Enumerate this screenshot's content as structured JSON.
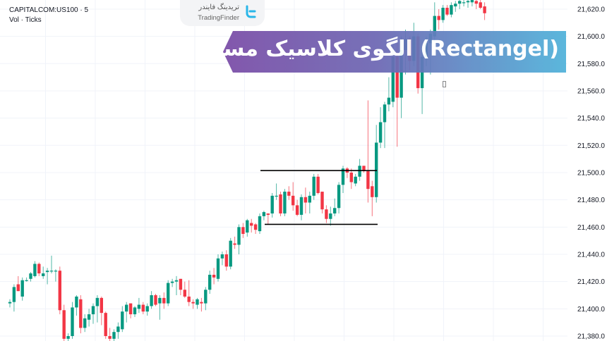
{
  "symbol": {
    "line1": "CAPITALCOM:US100 · 5",
    "line2": "Vol · Ticks"
  },
  "logo": {
    "fa": "تریدینگ فایندر",
    "en": "TradingFinder"
  },
  "banner": {
    "title": "الگوی کلاسیک مستطیل (Rectangel)"
  },
  "colors": {
    "up": "#089981",
    "down": "#f23645",
    "grid": "#f0f3fa",
    "banner_start": "#7a4ba6",
    "banner_end": "#4fb2da"
  },
  "chart_data": {
    "type": "candlestick",
    "ylim": [
      21376,
      21628
    ],
    "y_ticks": [
      "21,380.0",
      "21,400.0",
      "21,420.0",
      "21,440.0",
      "21,460.0",
      "21,480.0",
      "21,500.0",
      "21,520.0",
      "21,540.0",
      "21,560.0",
      "21,580.0",
      "21,600.0",
      "21,620.0"
    ],
    "y_tick_values": [
      21380,
      21400,
      21420,
      21440,
      21460,
      21480,
      21500,
      21520,
      21540,
      21560,
      21580,
      21600,
      21620
    ],
    "rectangle_lines": [
      {
        "price": 21501.5
      },
      {
        "price": 21462
      }
    ],
    "ohlc": [
      [
        21404,
        21407,
        21401,
        21405
      ],
      [
        21405,
        21418,
        21398,
        21416
      ],
      [
        21418,
        21424,
        21413,
        21413
      ],
      [
        21409,
        21423,
        21406,
        21421
      ],
      [
        21421,
        21423,
        21420,
        21421
      ],
      [
        21422,
        21427,
        21420,
        21426
      ],
      [
        21424,
        21435,
        21423,
        21433
      ],
      [
        21433,
        21434,
        21424,
        21426
      ],
      [
        21424,
        21431,
        21422,
        21426
      ],
      [
        21427,
        21430,
        21418,
        21428
      ],
      [
        21428,
        21439,
        21426,
        21428
      ],
      [
        21428,
        21429,
        21420,
        21428
      ],
      [
        21428,
        21431,
        21396,
        21399
      ],
      [
        21399,
        21403,
        21375,
        21378
      ],
      [
        21378,
        21382,
        21370,
        21380
      ],
      [
        21380,
        21405,
        21378,
        21401
      ],
      [
        21401,
        21410,
        21395,
        21409
      ],
      [
        21407,
        21410,
        21382,
        21386
      ],
      [
        21386,
        21396,
        21383,
        21393
      ],
      [
        21392,
        21400,
        21387,
        21396
      ],
      [
        21396,
        21404,
        21389,
        21402
      ],
      [
        21402,
        21410,
        21390,
        21408
      ],
      [
        21408,
        21409,
        21388,
        21397
      ],
      [
        21397,
        21398,
        21378,
        21380
      ],
      [
        21380,
        21386,
        21372,
        21378
      ],
      [
        21378,
        21385,
        21370,
        21383
      ],
      [
        21383,
        21390,
        21378,
        21387
      ],
      [
        21385,
        21402,
        21383,
        21398
      ],
      [
        21398,
        21405,
        21390,
        21403
      ],
      [
        21404,
        21404,
        21393,
        21396
      ],
      [
        21396,
        21402,
        21394,
        21401
      ],
      [
        21400,
        21408,
        21397,
        21403
      ],
      [
        21403,
        21405,
        21396,
        21398
      ],
      [
        21398,
        21404,
        21395,
        21402
      ],
      [
        21402,
        21413,
        21400,
        21410
      ],
      [
        21410,
        21411,
        21402,
        21403
      ],
      [
        21404,
        21410,
        21392,
        21408
      ],
      [
        21408,
        21412,
        21400,
        21404
      ],
      [
        21404,
        21421,
        21402,
        21419
      ],
      [
        21419,
        21422,
        21416,
        21420
      ],
      [
        21420,
        21424,
        21410,
        21421
      ],
      [
        21422,
        21422,
        21410,
        21414
      ],
      [
        21414,
        21420,
        21408,
        21409
      ],
      [
        21409,
        21421,
        21402,
        21405
      ],
      [
        21405,
        21407,
        21400,
        21404
      ],
      [
        21403,
        21408,
        21400,
        21407
      ],
      [
        21405,
        21408,
        21398,
        21404
      ],
      [
        21404,
        21416,
        21399,
        21414
      ],
      [
        21414,
        21428,
        21411,
        21425
      ],
      [
        21425,
        21430,
        21418,
        21423
      ],
      [
        21422,
        21440,
        21420,
        21437
      ],
      [
        21437,
        21442,
        21432,
        21440
      ],
      [
        21440,
        21443,
        21428,
        21431
      ],
      [
        21431,
        21452,
        21429,
        21450
      ],
      [
        21448,
        21453,
        21444,
        21447
      ],
      [
        21447,
        21462,
        21440,
        21460
      ],
      [
        21460,
        21463,
        21452,
        21455
      ],
      [
        21456,
        21466,
        21453,
        21465
      ],
      [
        21463,
        21466,
        21456,
        21461
      ],
      [
        21462,
        21463,
        21455,
        21458
      ],
      [
        21457,
        21470,
        21455,
        21468
      ],
      [
        21468,
        21472,
        21465,
        21471
      ],
      [
        21470,
        21470,
        21462,
        21469
      ],
      [
        21470,
        21485,
        21467,
        21483
      ],
      [
        21483,
        21492,
        21480,
        21483
      ],
      [
        21484,
        21486,
        21468,
        21470
      ],
      [
        21470,
        21488,
        21468,
        21486
      ],
      [
        21486,
        21490,
        21480,
        21483
      ],
      [
        21483,
        21493,
        21472,
        21476
      ],
      [
        21476,
        21480,
        21468,
        21469
      ],
      [
        21469,
        21484,
        21465,
        21482
      ],
      [
        21482,
        21489,
        21470,
        21478
      ],
      [
        21478,
        21486,
        21470,
        21483
      ],
      [
        21483,
        21499,
        21480,
        21497
      ],
      [
        21497,
        21499,
        21484,
        21485
      ],
      [
        21486,
        21486,
        21470,
        21473
      ],
      [
        21473,
        21476,
        21463,
        21466
      ],
      [
        21466,
        21475,
        21461,
        21470
      ],
      [
        21470,
        21481,
        21468,
        21474
      ],
      [
        21474,
        21493,
        21470,
        21491
      ],
      [
        21491,
        21505,
        21485,
        21503
      ],
      [
        21503,
        21504,
        21496,
        21500
      ],
      [
        21500,
        21503,
        21488,
        21493
      ],
      [
        21492,
        21499,
        21490,
        21497
      ],
      [
        21497,
        21510,
        21494,
        21505
      ],
      [
        21505,
        21505,
        21500,
        21501
      ],
      [
        21501,
        21553,
        21478,
        21488
      ],
      [
        21490,
        21494,
        21468,
        21482
      ],
      [
        21482,
        21535,
        21478,
        21522
      ],
      [
        21522,
        21548,
        21518,
        21537
      ],
      [
        21537,
        21552,
        21518,
        21550
      ],
      [
        21550,
        21570,
        21545,
        21555
      ],
      [
        21552,
        21600,
        21548,
        21585
      ],
      [
        21585,
        21595,
        21519,
        21555
      ],
      [
        21555,
        21600,
        21540,
        21590
      ],
      [
        21590,
        21605,
        21572,
        21598
      ],
      [
        21598,
        21600,
        21575,
        21582
      ],
      [
        21582,
        21610,
        21578,
        21600
      ],
      [
        21600,
        21602,
        21558,
        21562
      ],
      [
        21562,
        21592,
        21543,
        21585
      ],
      [
        21585,
        21600,
        21578,
        21595
      ],
      [
        21595,
        21605,
        21572,
        21602
      ],
      [
        21600,
        21625,
        21596,
        21615
      ],
      [
        21615,
        21620,
        21605,
        21612
      ],
      [
        21612,
        21623,
        21610,
        21621
      ],
      [
        21621,
        21623,
        21615,
        21616
      ],
      [
        21616,
        21625,
        21614,
        21623
      ],
      [
        21622,
        21626,
        21618,
        21624
      ],
      [
        21624,
        21627,
        21620,
        21626
      ],
      [
        21625,
        21627,
        21622,
        21625
      ],
      [
        21625,
        21628,
        21621,
        21626
      ],
      [
        21625,
        21628,
        21622,
        21627
      ],
      [
        21626,
        21627,
        21620,
        21624
      ],
      [
        21625,
        21627,
        21620,
        21621
      ],
      [
        21622,
        21625,
        21612,
        21617
      ]
    ]
  }
}
